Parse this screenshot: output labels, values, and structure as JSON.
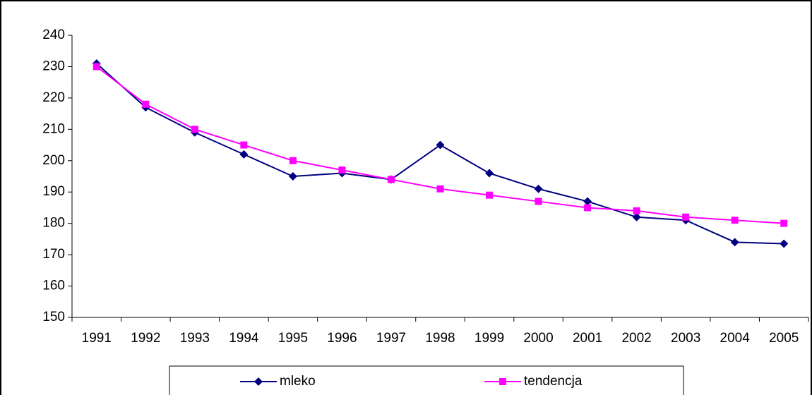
{
  "chart_data": {
    "type": "line",
    "categories": [
      "1991",
      "1992",
      "1993",
      "1994",
      "1995",
      "1996",
      "1997",
      "1998",
      "1999",
      "2000",
      "2001",
      "2002",
      "2003",
      "2004",
      "2005"
    ],
    "series": [
      {
        "name": "mleko",
        "color": "#000080",
        "marker": "diamond",
        "values": [
          231,
          217,
          209,
          202,
          195,
          196,
          194,
          205,
          196,
          191,
          187,
          182,
          181,
          174,
          173.5
        ]
      },
      {
        "name": "tendencja",
        "color": "#ff00ff",
        "marker": "square",
        "values": [
          230,
          218,
          210,
          205,
          200,
          197,
          194,
          191,
          189,
          187,
          185,
          184,
          182,
          181,
          180
        ]
      }
    ],
    "ylim": [
      150,
      240
    ],
    "yticks": [
      150,
      160,
      170,
      180,
      190,
      200,
      210,
      220,
      230,
      240
    ],
    "grid": false,
    "legend": "bottom"
  }
}
